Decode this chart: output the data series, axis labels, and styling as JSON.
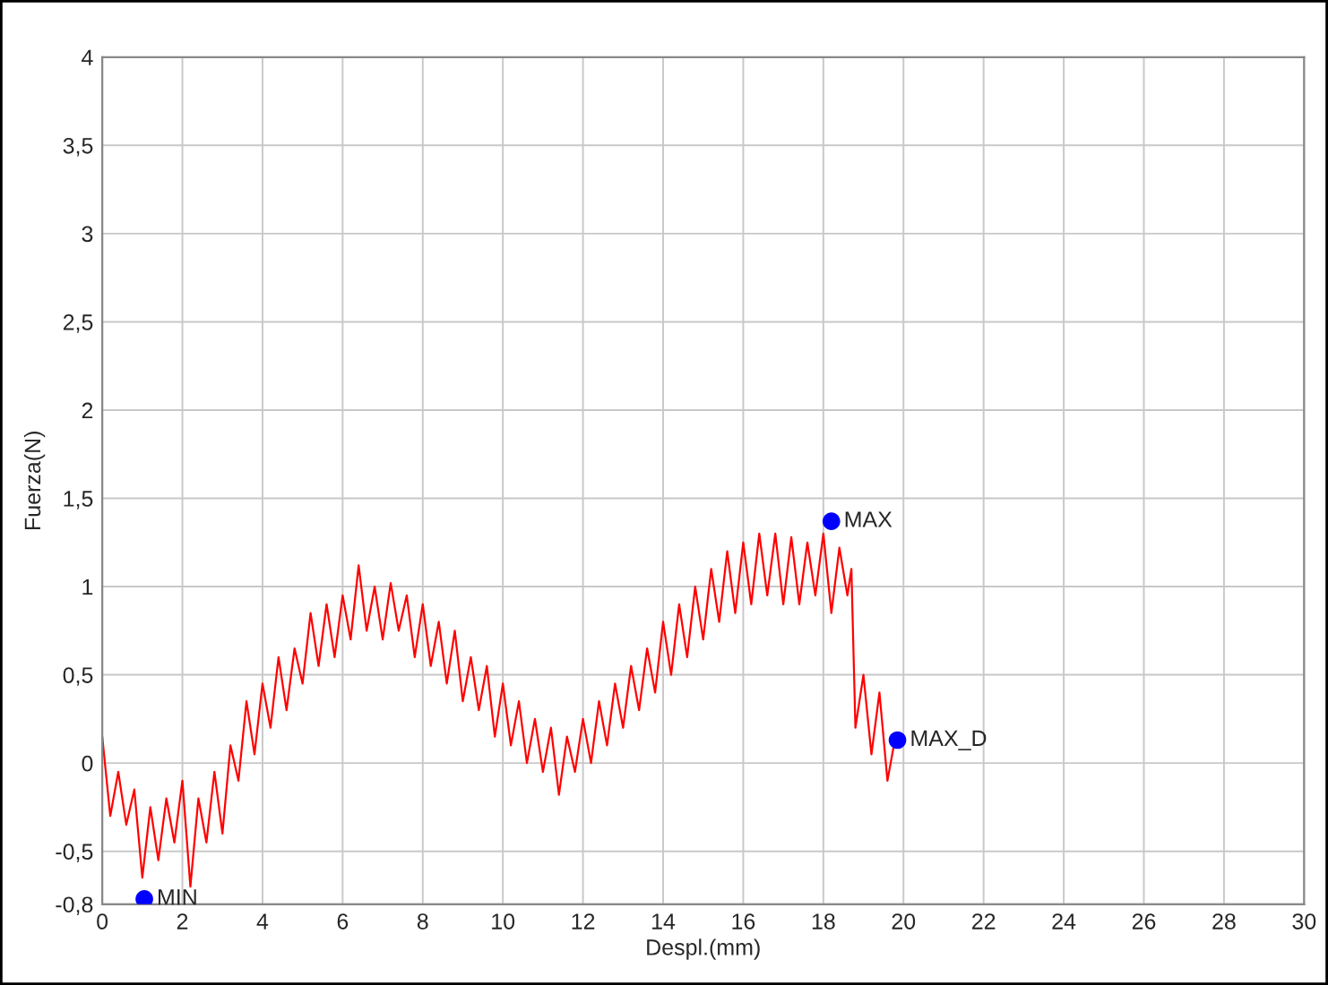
{
  "chart_data": {
    "type": "line",
    "xlabel": "Despl.(mm)",
    "ylabel": "Fuerza(N)",
    "xlim": [
      0,
      30
    ],
    "xticks": [
      0,
      2,
      4,
      6,
      8,
      10,
      12,
      14,
      16,
      18,
      20,
      22,
      24,
      26,
      28,
      30
    ],
    "ylim": [
      -0.8,
      4
    ],
    "yticks": [
      {
        "value": -0.8,
        "label": "-0,8"
      },
      {
        "value": -0.5,
        "label": "-0,5"
      },
      0,
      {
        "value": 0.5,
        "label": "0,5"
      },
      1,
      {
        "value": 1.5,
        "label": "1,5"
      },
      2,
      {
        "value": 2.5,
        "label": "2,5"
      },
      3,
      {
        "value": 3.5,
        "label": "3,5"
      },
      4
    ],
    "grid": true,
    "legend": false,
    "series": [
      {
        "color": "#ff0000",
        "marker": "none",
        "line_style": "solid",
        "x": [
          0,
          0.2,
          0.4,
          0.6,
          0.8,
          1.0,
          1.2,
          1.4,
          1.6,
          1.8,
          2.0,
          2.2,
          2.4,
          2.6,
          2.8,
          3.0,
          3.2,
          3.4,
          3.6,
          3.8,
          4.0,
          4.2,
          4.4,
          4.6,
          4.8,
          5.0,
          5.2,
          5.4,
          5.6,
          5.8,
          6.0,
          6.2,
          6.4,
          6.6,
          6.8,
          7.0,
          7.2,
          7.4,
          7.6,
          7.8,
          8.0,
          8.2,
          8.4,
          8.6,
          8.8,
          9.0,
          9.2,
          9.4,
          9.6,
          9.8,
          10.0,
          10.2,
          10.4,
          10.6,
          10.8,
          11.0,
          11.2,
          11.4,
          11.6,
          11.8,
          12.0,
          12.2,
          12.4,
          12.6,
          12.8,
          13.0,
          13.2,
          13.4,
          13.6,
          13.8,
          14.0,
          14.2,
          14.4,
          14.6,
          14.8,
          15.0,
          15.2,
          15.4,
          15.6,
          15.8,
          16.0,
          16.2,
          16.4,
          16.6,
          16.8,
          17.0,
          17.2,
          17.4,
          17.6,
          17.8,
          18.0,
          18.2,
          18.4,
          18.6,
          18.7,
          18.8,
          19.0,
          19.2,
          19.4,
          19.6,
          19.8
        ],
        "values": [
          0.15,
          -0.3,
          -0.05,
          -0.35,
          -0.15,
          -0.65,
          -0.25,
          -0.55,
          -0.2,
          -0.45,
          -0.1,
          -0.7,
          -0.2,
          -0.45,
          -0.05,
          -0.4,
          0.1,
          -0.1,
          0.35,
          0.05,
          0.45,
          0.2,
          0.6,
          0.3,
          0.65,
          0.45,
          0.85,
          0.55,
          0.9,
          0.6,
          0.95,
          0.7,
          1.12,
          0.75,
          1.0,
          0.7,
          1.02,
          0.75,
          0.95,
          0.6,
          0.9,
          0.55,
          0.8,
          0.45,
          0.75,
          0.35,
          0.6,
          0.3,
          0.55,
          0.15,
          0.45,
          0.1,
          0.35,
          0.0,
          0.25,
          -0.05,
          0.2,
          -0.18,
          0.15,
          -0.05,
          0.25,
          0.0,
          0.35,
          0.1,
          0.45,
          0.2,
          0.55,
          0.3,
          0.65,
          0.4,
          0.8,
          0.5,
          0.9,
          0.6,
          1.0,
          0.7,
          1.1,
          0.8,
          1.2,
          0.85,
          1.25,
          0.9,
          1.3,
          0.95,
          1.3,
          0.9,
          1.28,
          0.9,
          1.25,
          0.95,
          1.3,
          0.85,
          1.22,
          0.95,
          1.1,
          0.2,
          0.5,
          0.05,
          0.4,
          -0.1,
          0.15
        ]
      },
      {
        "type": "scatter",
        "color": "#0000ff",
        "marker": "circle",
        "x": [
          1.05,
          18.2,
          19.85
        ],
        "values": [
          -0.77,
          1.37,
          0.13
        ]
      }
    ],
    "annotations": [
      {
        "text": "MIN",
        "x": 1.05,
        "y": -0.77
      },
      {
        "text": "MAX",
        "x": 18.2,
        "y": 1.37
      },
      {
        "text": "MAX_D",
        "x": 19.85,
        "y": 0.13
      }
    ]
  }
}
